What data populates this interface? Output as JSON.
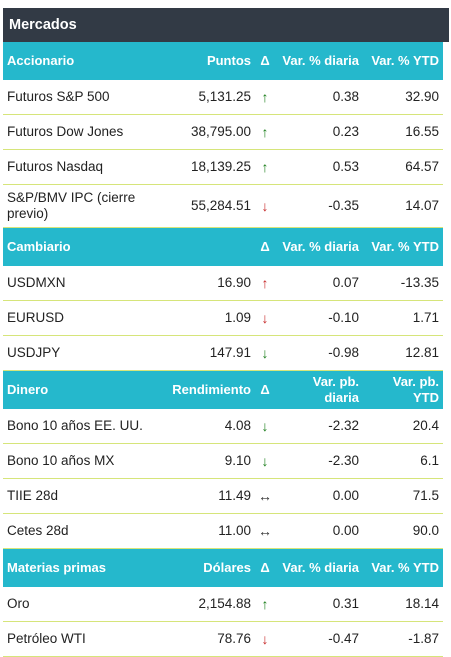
{
  "title": "Mercados",
  "sections": [
    {
      "headers": [
        "Accionario",
        "Puntos",
        "Δ",
        "Var. % diaria",
        "Var. % YTD"
      ],
      "rows": [
        {
          "name": "Futuros S&P 500",
          "value": "5,131.25",
          "arrow": "↑",
          "arrow_class": "up",
          "daily": "0.38",
          "ytd": "32.90"
        },
        {
          "name": "Futuros Dow Jones",
          "value": "38,795.00",
          "arrow": "↑",
          "arrow_class": "up",
          "daily": "0.23",
          "ytd": "16.55"
        },
        {
          "name": "Futuros Nasdaq",
          "value": "18,139.25",
          "arrow": "↑",
          "arrow_class": "up",
          "daily": "0.53",
          "ytd": "64.57"
        },
        {
          "name": "S&P/BMV IPC (cierre previo)",
          "value": "55,284.51",
          "arrow": "↓",
          "arrow_class": "down-red",
          "daily": "-0.35",
          "ytd": "14.07"
        }
      ]
    },
    {
      "headers": [
        "Cambiario",
        "",
        "Δ",
        "Var. % diaria",
        "Var. % YTD"
      ],
      "rows": [
        {
          "name": "USDMXN",
          "value": "16.90",
          "arrow": "↑",
          "arrow_class": "up-red",
          "daily": "0.07",
          "ytd": "-13.35"
        },
        {
          "name": "EURUSD",
          "value": "1.09",
          "arrow": "↓",
          "arrow_class": "down-red",
          "daily": "-0.10",
          "ytd": "1.71"
        },
        {
          "name": "USDJPY",
          "value": "147.91",
          "arrow": "↓",
          "arrow_class": "down-green",
          "daily": "-0.98",
          "ytd": "12.81"
        }
      ]
    },
    {
      "headers": [
        "Dinero",
        "Rendimiento",
        "Δ",
        "Var. pb. diaria",
        "Var. pb. YTD"
      ],
      "rows": [
        {
          "name": "Bono 10 años EE. UU.",
          "value": "4.08",
          "arrow": "↓",
          "arrow_class": "down-green",
          "daily": "-2.32",
          "ytd": "20.4"
        },
        {
          "name": "Bono 10 años MX",
          "value": "9.10",
          "arrow": "↓",
          "arrow_class": "down-green",
          "daily": "-2.30",
          "ytd": "6.1"
        },
        {
          "name": "TIIE 28d",
          "value": "11.49",
          "arrow": "↔",
          "arrow_class": "flat",
          "daily": "0.00",
          "ytd": "71.5"
        },
        {
          "name": "Cetes 28d",
          "value": "11.00",
          "arrow": "↔",
          "arrow_class": "flat",
          "daily": "0.00",
          "ytd": "90.0"
        }
      ]
    },
    {
      "headers": [
        "Materias primas",
        "Dólares",
        "Δ",
        "Var. % diaria",
        "Var. % YTD"
      ],
      "rows": [
        {
          "name": "Oro",
          "value": "2,154.88",
          "arrow": "↑",
          "arrow_class": "up",
          "daily": "0.31",
          "ytd": "18.14"
        },
        {
          "name": "Petróleo WTI",
          "value": "78.76",
          "arrow": "↓",
          "arrow_class": "down-red",
          "daily": "-0.47",
          "ytd": "-1.87"
        }
      ]
    }
  ]
}
